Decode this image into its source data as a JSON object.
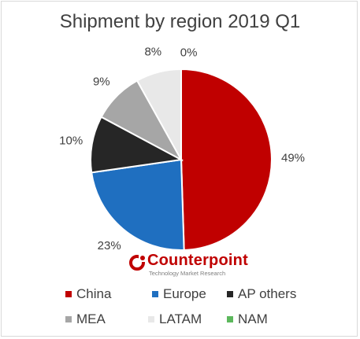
{
  "chart_data": {
    "type": "pie",
    "title": "Shipment by region 2019 Q1",
    "slices": [
      {
        "name": "China",
        "value": 49,
        "label": "49%",
        "color": "#c00000"
      },
      {
        "name": "Europe",
        "value": 23,
        "label": "23%",
        "color": "#1f6fc0"
      },
      {
        "name": "AP others",
        "value": 10,
        "label": "10%",
        "color": "#262626"
      },
      {
        "name": "MEA",
        "value": 9,
        "label": "9%",
        "color": "#a6a6a6"
      },
      {
        "name": "LATAM",
        "value": 8,
        "label": "8%",
        "color": "#e8e8e8"
      },
      {
        "name": "NAM",
        "value": 0,
        "label": "0%",
        "color": "#5cb85c"
      }
    ],
    "legend_placement": "bottom"
  },
  "logo": {
    "name": "Counterpoint",
    "tagline": "Technology Market Research"
  }
}
